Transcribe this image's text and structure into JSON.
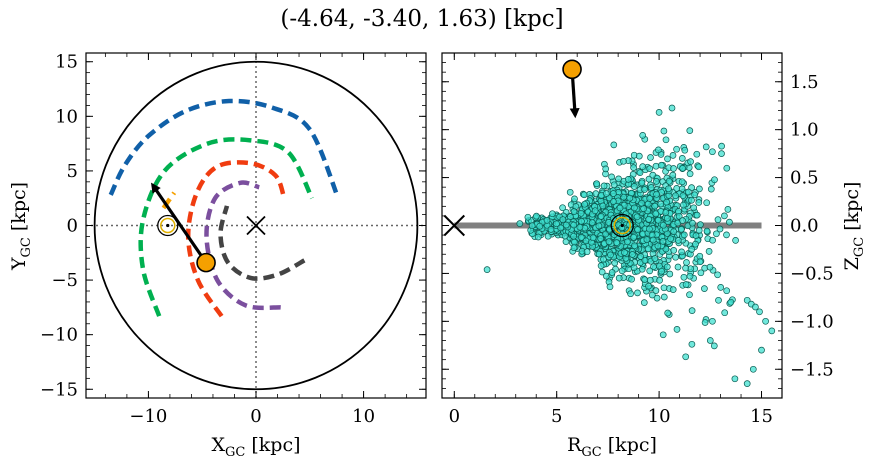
{
  "figure": {
    "title": "(-4.64, -3.40, 1.63) [kpc]"
  },
  "chart_data": [
    {
      "type": "scatter",
      "panel": "left",
      "xlabel_main": "X",
      "xlabel_sub": "GC",
      "xlabel_unit": " [kpc]",
      "ylabel_main": "Y",
      "ylabel_sub": "GC",
      "ylabel_unit": " [kpc]",
      "xlim": [
        -15.8,
        15.8
      ],
      "ylim": [
        -15.8,
        15.8
      ],
      "xticks": [
        -10,
        0,
        10
      ],
      "xtick_labels": [
        "−10",
        "0",
        "10"
      ],
      "yticks": [
        -15,
        -10,
        -5,
        0,
        5,
        10,
        15
      ],
      "ytick_labels": [
        "−15",
        "−10",
        "−5",
        "0",
        "5",
        "10",
        "15"
      ],
      "boundary_circle_radius": 15,
      "galactic_center": [
        0,
        0
      ],
      "sun": [
        -8.2,
        0
      ],
      "target": [
        -4.64,
        -3.4
      ],
      "velocity_arrow": {
        "from": [
          -4.64,
          -3.4
        ],
        "to": [
          -9.6,
          3.7
        ]
      },
      "grid": false,
      "spiral_arms": [
        {
          "color": "#1060a8",
          "points": [
            [
              -13.5,
              2.8
            ],
            [
              -12.2,
              5.5
            ],
            [
              -10,
              8.2
            ],
            [
              -6.5,
              10.5
            ],
            [
              -2.5,
              11.4
            ],
            [
              1.5,
              10.8
            ],
            [
              5,
              8.8
            ],
            [
              7.6,
              2.6
            ]
          ]
        },
        {
          "color": "#00b050",
          "points": [
            [
              -9,
              -8.3
            ],
            [
              -10.5,
              -4
            ],
            [
              -10.5,
              0.5
            ],
            [
              -8.5,
              5
            ],
            [
              -4.5,
              7.5
            ],
            [
              -0.5,
              7.8
            ],
            [
              3,
              6.7
            ],
            [
              5.2,
              2.5
            ]
          ]
        },
        {
          "color": "#f03c10",
          "points": [
            [
              -3.2,
              -8.3
            ],
            [
              -5.4,
              -5
            ],
            [
              -6.3,
              -1
            ],
            [
              -5.5,
              3
            ],
            [
              -3.6,
              5.4
            ],
            [
              -0.5,
              5.7
            ],
            [
              1.8,
              4.6
            ],
            [
              2.6,
              2.6
            ]
          ]
        },
        {
          "color": "#7b4f9e",
          "points": [
            [
              2.3,
              -7.5
            ],
            [
              -1,
              -7.3
            ],
            [
              -3.6,
              -5
            ],
            [
              -4.6,
              -1
            ],
            [
              -3.8,
              2.5
            ],
            [
              -1.5,
              3.9
            ],
            [
              0.3,
              3.5
            ]
          ]
        },
        {
          "color": "#f5a000",
          "points": [
            [
              -8.6,
              1.6
            ],
            [
              -7.6,
              3
            ]
          ]
        },
        {
          "color": "#444444",
          "points": [
            [
              4.5,
              -3.2
            ],
            [
              2,
              -4.5
            ],
            [
              -0.5,
              -4.8
            ],
            [
              -2.6,
              -3.4
            ],
            [
              -3.3,
              -0.8
            ],
            [
              -2.7,
              1.8
            ]
          ]
        }
      ]
    },
    {
      "type": "scatter",
      "panel": "right",
      "xlabel_main": "R",
      "xlabel_sub": "GC",
      "xlabel_unit": " [kpc]",
      "ylabel_main": "Z",
      "ylabel_sub": "GC",
      "ylabel_unit": " [kpc]",
      "xlim": [
        -0.6,
        16
      ],
      "ylim": [
        -1.8,
        1.8
      ],
      "xticks": [
        0,
        5,
        10,
        15
      ],
      "xtick_labels": [
        "0",
        "5",
        "10",
        "15"
      ],
      "yticks": [
        -1.5,
        -1.0,
        -0.5,
        0.0,
        0.5,
        1.0,
        1.5
      ],
      "ytick_labels": [
        "−1.5",
        "−1.0",
        "−0.5",
        "0.0",
        "0.5",
        "1.0",
        "1.5"
      ],
      "disk_line": {
        "from": [
          0,
          0
        ],
        "to": [
          15,
          0
        ]
      },
      "galactic_center": [
        0,
        0
      ],
      "sun": [
        8.2,
        0
      ],
      "target": [
        5.75,
        1.63
      ],
      "velocity_arrow": {
        "from": [
          5.75,
          1.63
        ],
        "to": [
          5.9,
          1.15
        ]
      },
      "grid": false,
      "point_color": "#40e0d0",
      "n_points": 1500,
      "outlier_points": [
        [
          1.6,
          -0.46
        ],
        [
          3.2,
          0.02
        ],
        [
          4.1,
          -0.12
        ],
        [
          7.6,
          -0.64
        ],
        [
          10,
          1.18
        ],
        [
          9.3,
          0.9
        ],
        [
          11.5,
          0.99
        ],
        [
          10.2,
          -1.14
        ],
        [
          11.6,
          -1.24
        ],
        [
          11.3,
          -1.37
        ],
        [
          12.5,
          -1.2
        ],
        [
          12.6,
          -1.0
        ],
        [
          13.3,
          -0.68
        ],
        [
          13.5,
          -0.8
        ],
        [
          14.3,
          -0.78
        ],
        [
          14.5,
          -0.82
        ],
        [
          14.7,
          -0.85
        ],
        [
          15.2,
          -1.0
        ],
        [
          15.5,
          -1.1
        ],
        [
          15,
          -1.3
        ],
        [
          14.6,
          -1.5
        ],
        [
          14.3,
          -1.65
        ],
        [
          13.7,
          -1.6
        ],
        [
          14.9,
          -0.9
        ],
        [
          12.9,
          -0.78
        ],
        [
          13.2,
          -0.91
        ],
        [
          12.3,
          0.82
        ],
        [
          12.6,
          0.77
        ],
        [
          9.2,
          0.94
        ]
      ]
    }
  ]
}
